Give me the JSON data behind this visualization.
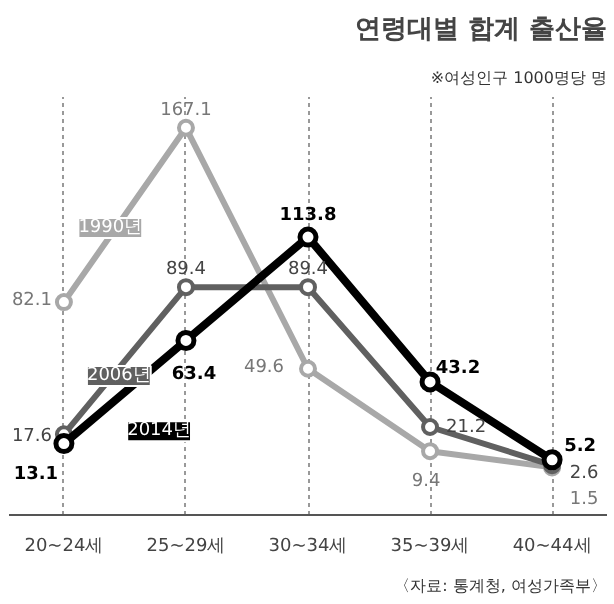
{
  "chart_data": {
    "type": "line",
    "title": "연령대별 합계 출산율",
    "subtitle": "※여성인구 1000명당 명",
    "annotations": [
      "〈자료: 통계청, 여성가족부〉"
    ],
    "categories": [
      "20~24세",
      "25~29세",
      "30~34세",
      "35~39세",
      "40~44세"
    ],
    "series": [
      {
        "name": "1990년",
        "color": "#a8a8a8",
        "values": [
          82.1,
          167.1,
          49.6,
          9.4,
          1.5
        ]
      },
      {
        "name": "2006년",
        "color": "#606060",
        "values": [
          17.6,
          89.4,
          89.4,
          21.2,
          2.6
        ]
      },
      {
        "name": "2014년",
        "color": "#000000",
        "values": [
          13.1,
          63.4,
          113.8,
          43.2,
          5.2
        ]
      }
    ],
    "data_labels": true,
    "grid": "x",
    "marker": "circle",
    "line_style": "solid"
  }
}
